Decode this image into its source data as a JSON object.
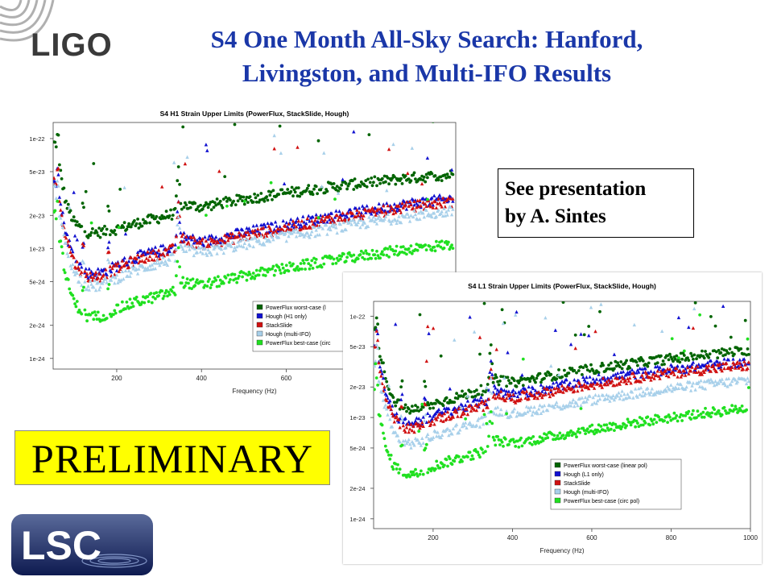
{
  "slide": {
    "title_line1": "S4 One Month All-Sky Search: Hanford,",
    "title_line2": "Livingston, and Multi-IFO Results",
    "ligo_logo_text": "LIGO",
    "lsc_logo_text": "LSC",
    "note_line1": "See presentation",
    "note_line2": "by A. Sintes",
    "preliminary_label": "PRELIMINARY",
    "colors": {
      "title": "#1a37a8",
      "powerflux_worst": "#006400",
      "hough_single": "#1010d0",
      "stackslide": "#d01010",
      "hough_multi": "#a8d0ea",
      "powerflux_best": "#20e020",
      "preliminary_bg": "#ffff00"
    }
  },
  "chart_data": [
    {
      "type": "scatter",
      "title": "S4 H1 Strain Upper Limits (PowerFlux, StackSlide, Hough)",
      "xlabel": "Frequency (Hz)",
      "ylabel": "",
      "xlim": [
        50,
        1000
      ],
      "ylim": [
        8e-25,
        1.4e-22
      ],
      "yscale": "log",
      "xticks": [
        "200",
        "400",
        "600"
      ],
      "yticks": [
        "1e-22",
        "5e-23",
        "2e-23",
        "1e-23",
        "5e-24",
        "2e-24",
        "1e-24"
      ],
      "legend_position": "bottom-right",
      "legend": [
        "PowerFlux worst-case (l",
        "Hough (H1 only)",
        "StackSlide",
        "Hough (multi-IFO)",
        "PowerFlux best-case (circ"
      ],
      "series": [
        {
          "name": "PowerFlux worst-case (l",
          "x": [
            55,
            80,
            100,
            130,
            160,
            200,
            250,
            300,
            340,
            350,
            400,
            500,
            600,
            700,
            800,
            900,
            1000
          ],
          "y": [
            9e-23,
            2.6e-23,
            1.7e-23,
            1.4e-23,
            1.4e-23,
            1.5e-23,
            1.7e-23,
            1.9e-23,
            2.1e-23,
            2.5e-23,
            2.4e-23,
            2.8e-23,
            3.2e-23,
            3.6e-23,
            4e-23,
            4.4e-23,
            4.7e-23
          ]
        },
        {
          "name": "Hough (H1 only)",
          "x": [
            55,
            80,
            100,
            130,
            160,
            200,
            250,
            300,
            340,
            350,
            400,
            500,
            600,
            700,
            800,
            900,
            1000
          ],
          "y": [
            4.5e-23,
            1.4e-23,
            8e-24,
            6e-24,
            6e-24,
            7e-24,
            8.5e-24,
            9.5e-24,
            1.05e-23,
            1.3e-23,
            1.15e-23,
            1.4e-23,
            1.65e-23,
            1.95e-23,
            2.25e-23,
            2.6e-23,
            2.85e-23
          ]
        },
        {
          "name": "StackSlide",
          "x": [
            55,
            80,
            100,
            130,
            160,
            200,
            250,
            300,
            340,
            350,
            400,
            500,
            600,
            700,
            800,
            900,
            1000
          ],
          "y": [
            4.2e-23,
            1.3e-23,
            7.5e-24,
            5.6e-24,
            5.6e-24,
            6.6e-24,
            8e-24,
            9e-24,
            1e-23,
            1.25e-23,
            1.1e-23,
            1.3e-23,
            1.55e-23,
            1.85e-23,
            2.1e-23,
            2.45e-23,
            2.7e-23
          ]
        },
        {
          "name": "Hough (multi-IFO)",
          "x": [
            55,
            80,
            100,
            130,
            160,
            200,
            250,
            300,
            340,
            350,
            400,
            500,
            600,
            700,
            800,
            900,
            1000
          ],
          "y": [
            3.4e-23,
            1.05e-23,
            6e-24,
            4.6e-24,
            4.6e-24,
            5.4e-24,
            6.5e-24,
            7.4e-24,
            8.2e-24,
            1e-23,
            9.2e-24,
            1.1e-23,
            1.3e-23,
            1.5e-23,
            1.75e-23,
            2e-23,
            2.2e-23
          ]
        },
        {
          "name": "PowerFlux best-case (circ",
          "x": [
            55,
            80,
            100,
            130,
            160,
            200,
            250,
            300,
            340,
            350,
            400,
            500,
            600,
            700,
            800,
            900,
            1000
          ],
          "y": [
            2.2e-23,
            5.5e-24,
            3.2e-24,
            2.4e-24,
            2.4e-24,
            2.8e-24,
            3.3e-24,
            3.7e-24,
            4.1e-24,
            5e-24,
            4.6e-24,
            5.6e-24,
            6.6e-24,
            7.7e-24,
            8.8e-24,
            1e-23,
            1.1e-23
          ]
        }
      ]
    },
    {
      "type": "scatter",
      "title": "S4 L1 Strain Upper Limits (PowerFlux, StackSlide, Hough)",
      "xlabel": "Frequency (Hz)",
      "ylabel": "",
      "xlim": [
        50,
        1000
      ],
      "ylim": [
        8e-25,
        1.4e-22
      ],
      "yscale": "log",
      "xticks": [
        "200",
        "400",
        "600",
        "800",
        "1000"
      ],
      "yticks": [
        "1e-22",
        "5e-23",
        "2e-23",
        "1e-23",
        "5e-24",
        "2e-24",
        "1e-24"
      ],
      "legend_position": "bottom-right",
      "legend": [
        "PowerFlux worst-case (linear pol)",
        "Hough (L1 only)",
        "StackSlide",
        "Hough (multi-IFO)",
        "PowerFlux best-case (circ pol)"
      ],
      "series": [
        {
          "name": "PowerFlux worst-case (linear pol)",
          "x": [
            55,
            80,
            100,
            130,
            160,
            200,
            250,
            300,
            340,
            350,
            400,
            500,
            600,
            700,
            800,
            900,
            1000
          ],
          "y": [
            7e-23,
            2.5e-23,
            1.5e-23,
            1.2e-23,
            1.2e-23,
            1.35e-23,
            1.55e-23,
            1.75e-23,
            1.95e-23,
            2.4e-23,
            2.2e-23,
            2.6e-23,
            3e-23,
            3.4e-23,
            3.8e-23,
            4.2e-23,
            4.6e-23
          ]
        },
        {
          "name": "Hough (L1 only)",
          "x": [
            55,
            80,
            100,
            130,
            160,
            200,
            250,
            300,
            340,
            350,
            400,
            500,
            600,
            700,
            800,
            900,
            1000
          ],
          "y": [
            5e-23,
            1.8e-23,
            1.1e-23,
            9e-24,
            9e-24,
            1.05e-23,
            1.2e-23,
            1.35e-23,
            1.5e-23,
            1.9e-23,
            1.7e-23,
            2e-23,
            2.35e-23,
            2.7e-23,
            3e-23,
            3.3e-23,
            3.6e-23
          ]
        },
        {
          "name": "StackSlide",
          "x": [
            55,
            80,
            100,
            130,
            160,
            200,
            250,
            300,
            340,
            350,
            400,
            500,
            600,
            700,
            800,
            900,
            1000
          ],
          "y": [
            4.6e-23,
            1.6e-23,
            1e-23,
            8e-24,
            8e-24,
            9.4e-24,
            1.08e-23,
            1.22e-23,
            1.36e-23,
            1.7e-23,
            1.55e-23,
            1.82e-23,
            2.12e-23,
            2.45e-23,
            2.75e-23,
            3.05e-23,
            3.3e-23
          ]
        },
        {
          "name": "Hough (multi-IFO)",
          "x": [
            55,
            80,
            100,
            130,
            160,
            200,
            250,
            300,
            340,
            350,
            400,
            500,
            600,
            700,
            800,
            900,
            1000
          ],
          "y": [
            3.4e-23,
            1.2e-23,
            7e-24,
            5.6e-24,
            5.6e-24,
            6.6e-24,
            7.6e-24,
            8.6e-24,
            9.6e-24,
            1.2e-23,
            1.1e-23,
            1.28e-23,
            1.5e-23,
            1.72e-23,
            1.95e-23,
            2.15e-23,
            2.35e-23
          ]
        },
        {
          "name": "PowerFlux best-case (circ pol)",
          "x": [
            55,
            80,
            100,
            130,
            160,
            200,
            250,
            300,
            340,
            350,
            400,
            500,
            600,
            700,
            800,
            900,
            1000
          ],
          "y": [
            1.8e-23,
            5e-24,
            3.4e-24,
            2.8e-24,
            2.8e-24,
            3.3e-24,
            3.8e-24,
            4.3e-24,
            4.8e-24,
            6e-24,
            5.5e-24,
            6.5e-24,
            7.6e-24,
            8.8e-24,
            1e-23,
            1.12e-23,
            1.25e-23
          ]
        }
      ]
    }
  ]
}
